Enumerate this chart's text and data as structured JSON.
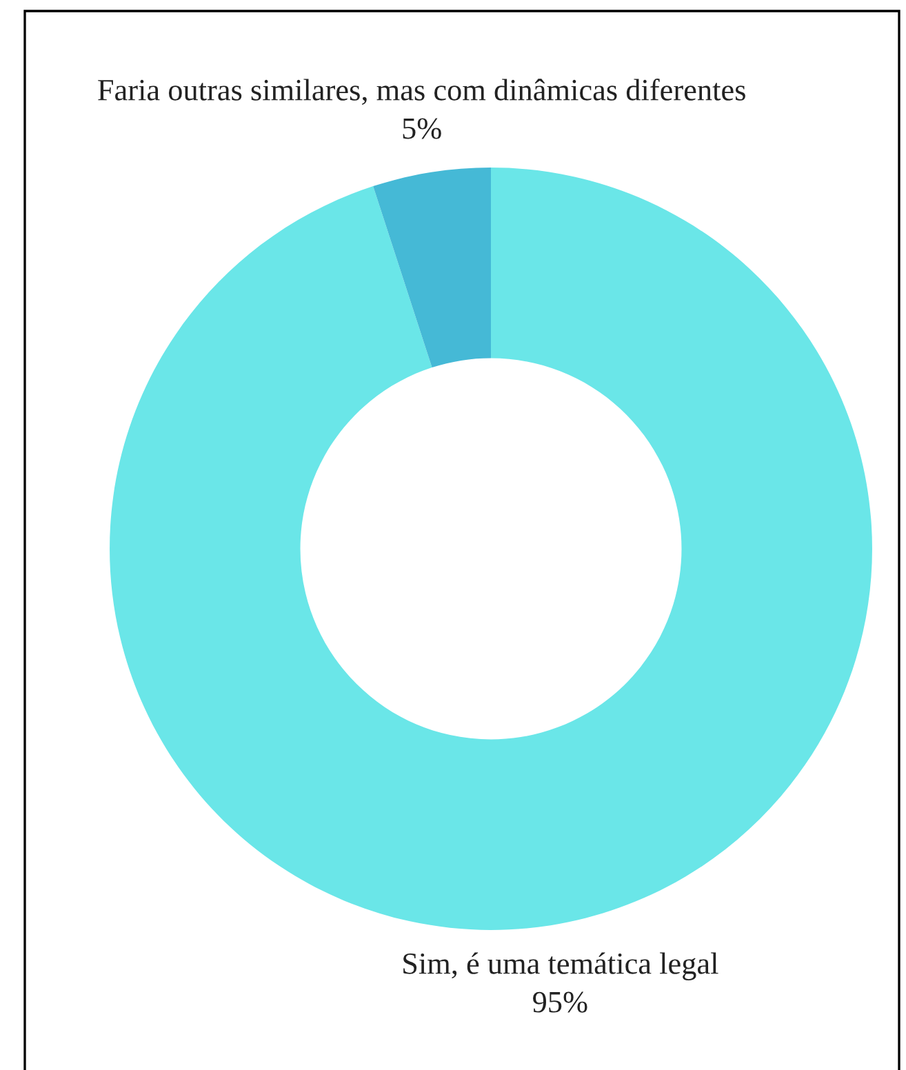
{
  "chart_data": {
    "type": "donut",
    "categories": [
      "Sim, é uma temática legal",
      "Faria outras similares, mas com dinâmicas diferentes"
    ],
    "values": [
      95,
      5
    ],
    "colors": [
      "#6ae6e8",
      "#45b9d6"
    ],
    "value_labels": [
      "95%",
      "5%"
    ],
    "legend": false
  }
}
